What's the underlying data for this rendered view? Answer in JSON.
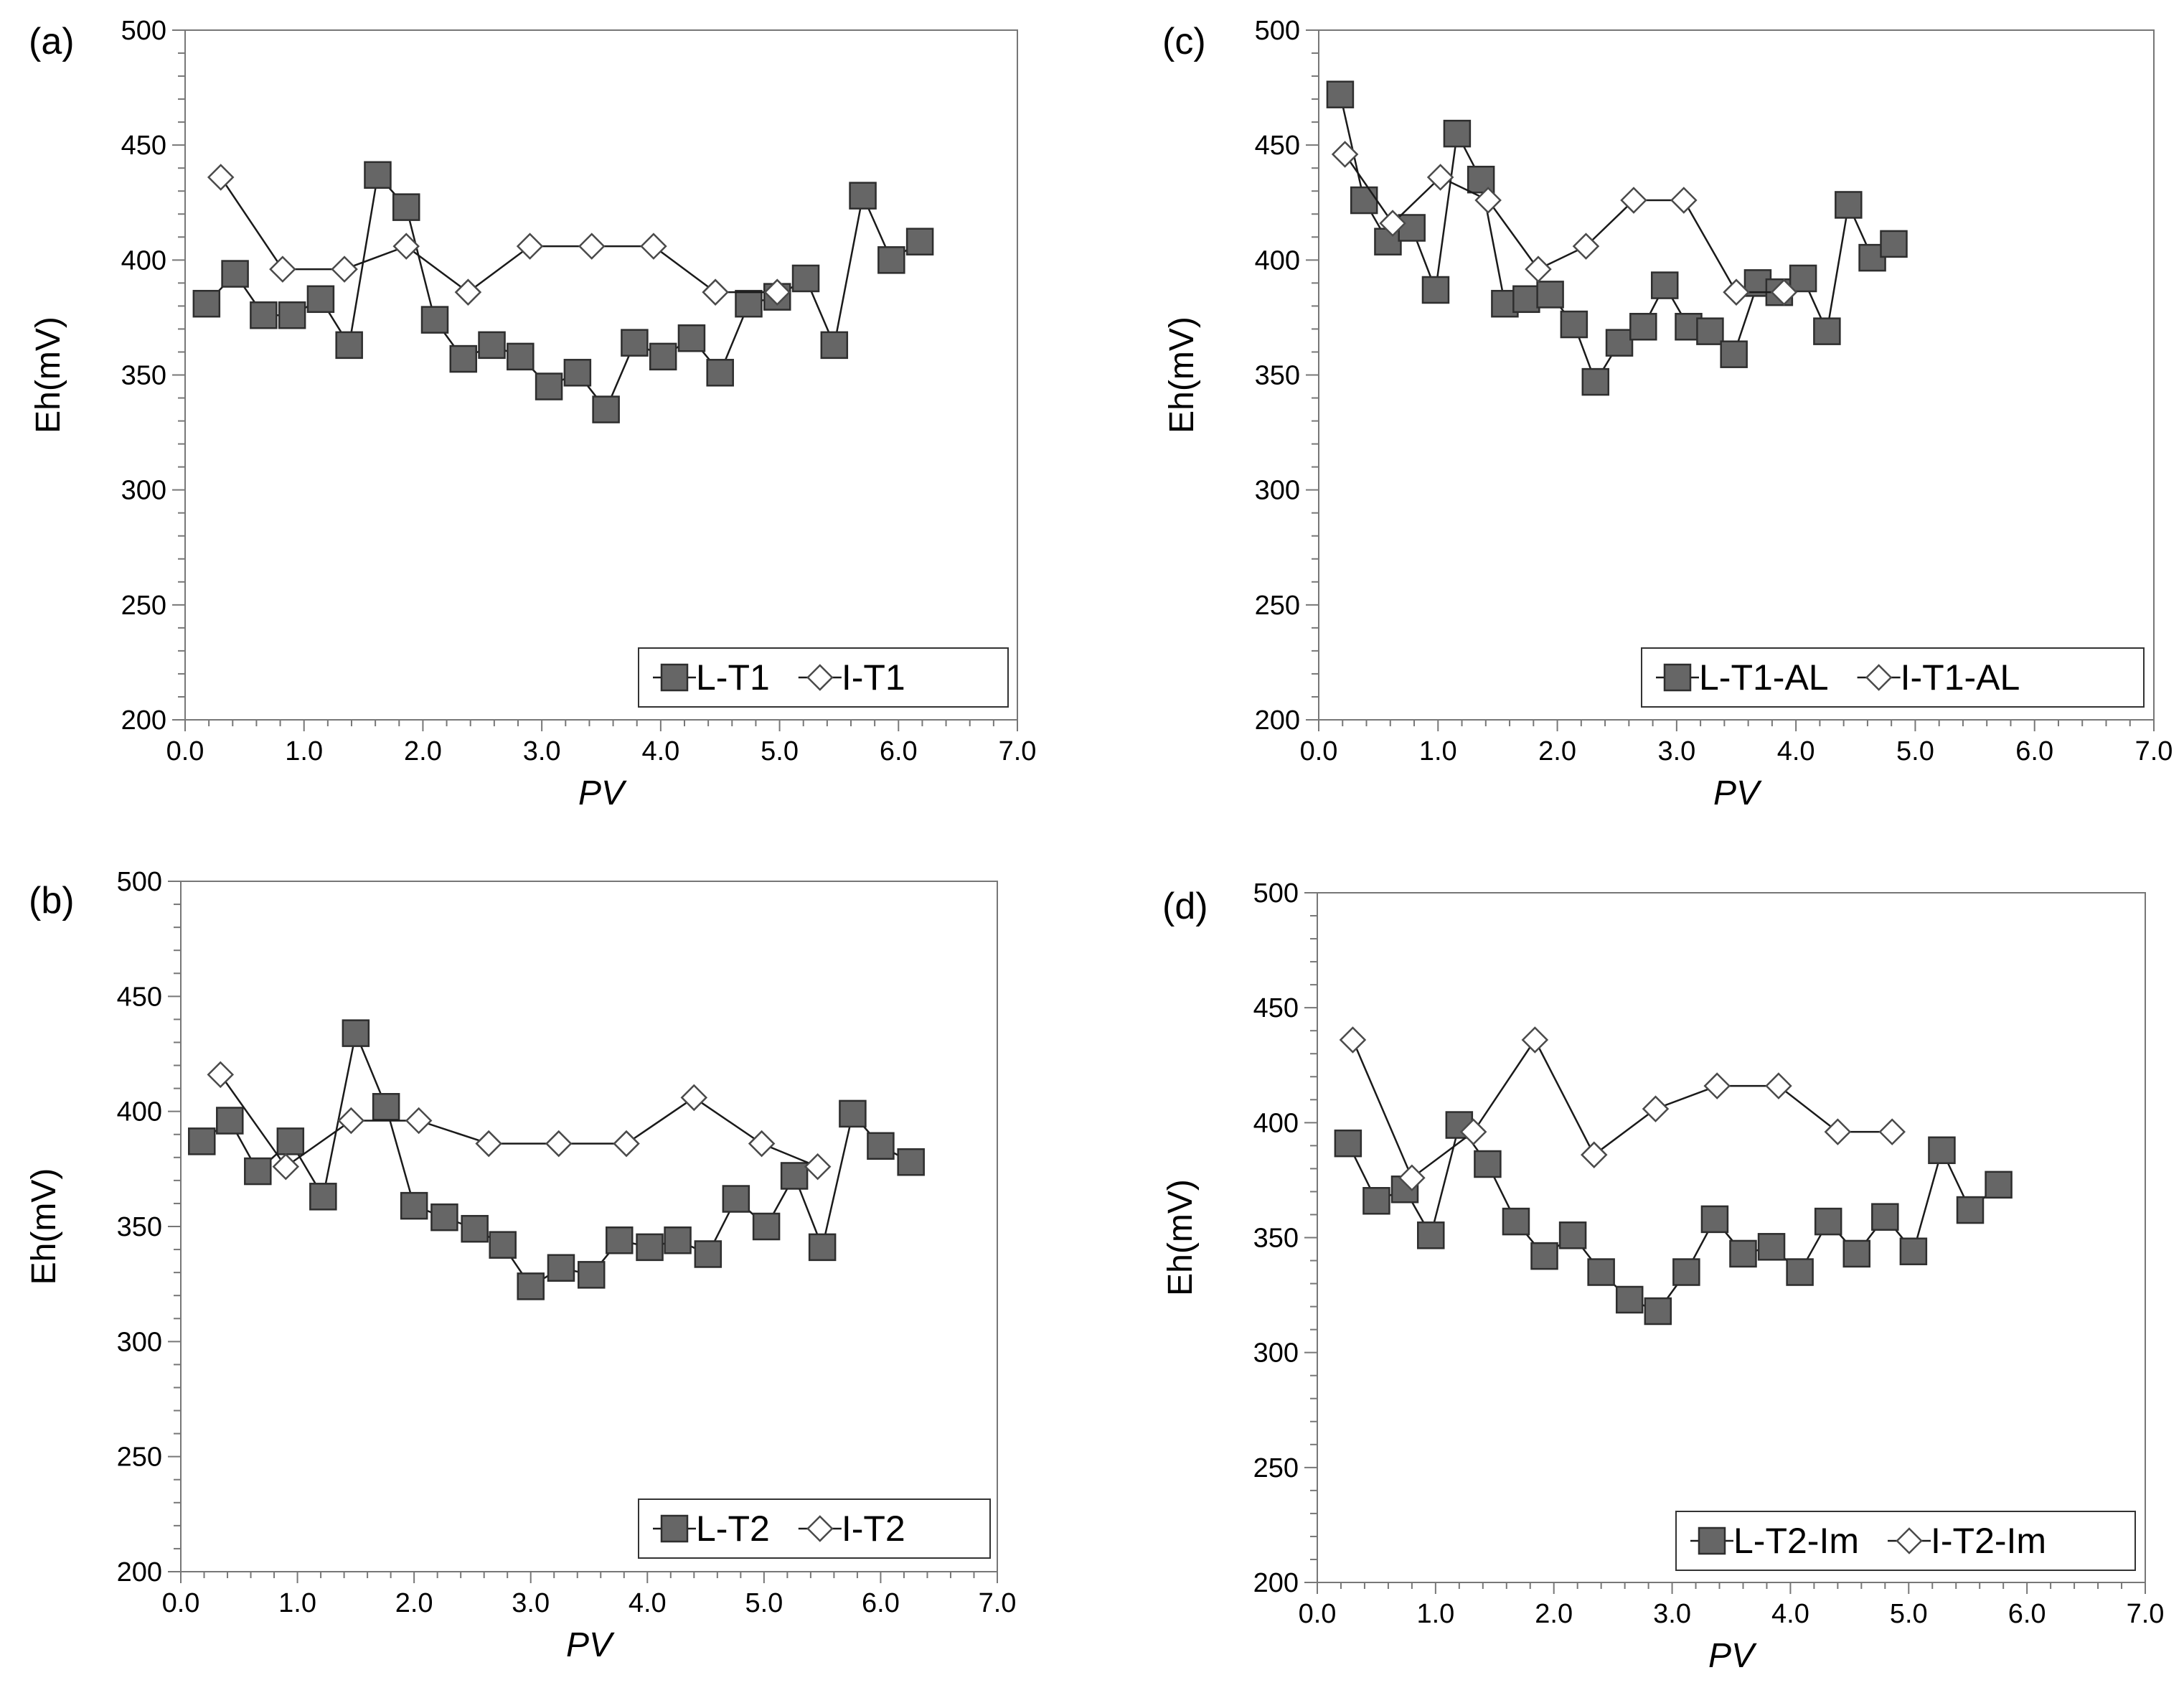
{
  "chart_data": [
    {
      "type": "line",
      "panel_label": "(a)",
      "xlabel": "PV",
      "ylabel": "Eh(mV)",
      "xlim": [
        0,
        7
      ],
      "ylim": [
        200,
        500
      ],
      "x_ticks": [
        "0.0",
        "1.0",
        "2.0",
        "3.0",
        "4.0",
        "5.0",
        "6.0",
        "7.0"
      ],
      "y_ticks": [
        "200",
        "250",
        "300",
        "350",
        "400",
        "450",
        "500"
      ],
      "legend_position": "bottom-right",
      "series": [
        {
          "name": "L-T1",
          "marker": "square",
          "color": "#666666",
          "x": [
            0.18,
            0.42,
            0.66,
            0.9,
            1.14,
            1.38,
            1.62,
            1.86,
            2.1,
            2.34,
            2.58,
            2.82,
            3.06,
            3.3,
            3.54,
            3.78,
            4.02,
            4.26,
            4.5,
            4.74,
            4.98,
            5.22,
            5.46,
            5.7,
            5.94,
            6.18
          ],
          "y": [
            381,
            394,
            376,
            376,
            383,
            363,
            437,
            423,
            374,
            357,
            363,
            358,
            345,
            351,
            335,
            364,
            358,
            366,
            351,
            381,
            384,
            392,
            363,
            428,
            400,
            408
          ]
        },
        {
          "name": "I-T1",
          "marker": "diamond",
          "color": "#ffffff",
          "x": [
            0.3,
            0.82,
            1.34,
            1.86,
            2.38,
            2.9,
            3.42,
            3.94,
            4.46,
            4.98
          ],
          "y": [
            436,
            396,
            396,
            406,
            386,
            406,
            406,
            406,
            386,
            386
          ]
        }
      ]
    },
    {
      "type": "line",
      "panel_label": "(b)",
      "xlabel": "PV",
      "ylabel": "Eh(mV)",
      "xlim": [
        0,
        7
      ],
      "ylim": [
        200,
        500
      ],
      "x_ticks": [
        "0.0",
        "1.0",
        "2.0",
        "3.0",
        "4.0",
        "5.0",
        "6.0",
        "7.0"
      ],
      "y_ticks": [
        "200",
        "250",
        "300",
        "350",
        "400",
        "450",
        "500"
      ],
      "legend_position": "bottom-right",
      "series": [
        {
          "name": "L-T2",
          "marker": "square",
          "color": "#666666",
          "x": [
            0.18,
            0.42,
            0.66,
            0.94,
            1.22,
            1.5,
            1.76,
            2.0,
            2.26,
            2.52,
            2.76,
            3.0,
            3.26,
            3.52,
            3.76,
            4.02,
            4.26,
            4.52,
            4.76,
            5.02,
            5.26,
            5.5,
            5.76,
            6.0,
            6.26
          ],
          "y": [
            387,
            396,
            374,
            387,
            363,
            434,
            402,
            359,
            354,
            349,
            342,
            324,
            332,
            329,
            344,
            341,
            344,
            338,
            362,
            350,
            372,
            341,
            399,
            385,
            378
          ]
        },
        {
          "name": "I-T2",
          "marker": "diamond",
          "color": "#ffffff",
          "x": [
            0.34,
            0.9,
            1.46,
            2.04,
            2.64,
            3.24,
            3.82,
            4.4,
            4.98,
            5.46
          ],
          "y": [
            416,
            376,
            396,
            396,
            386,
            386,
            386,
            406,
            386,
            376
          ]
        }
      ]
    },
    {
      "type": "line",
      "panel_label": "(c)",
      "xlabel": "PV",
      "ylabel": "Eh(mV)",
      "xlim": [
        0,
        7
      ],
      "ylim": [
        200,
        500
      ],
      "x_ticks": [
        "0.0",
        "1.0",
        "2.0",
        "3.0",
        "4.0",
        "5.0",
        "6.0",
        "7.0"
      ],
      "y_ticks": [
        "200",
        "250",
        "300",
        "350",
        "400",
        "450",
        "500"
      ],
      "legend_position": "bottom-right",
      "series": [
        {
          "name": "L-T1-AL",
          "marker": "square",
          "color": "#666666",
          "x": [
            0.18,
            0.38,
            0.58,
            0.78,
            0.98,
            1.16,
            1.36,
            1.56,
            1.74,
            1.94,
            2.14,
            2.32,
            2.52,
            2.72,
            2.9,
            3.1,
            3.28,
            3.48,
            3.68,
            3.86,
            4.06,
            4.26,
            4.44,
            4.64,
            4.82
          ],
          "y": [
            472,
            426,
            408,
            414,
            387,
            455,
            435,
            381,
            383,
            385,
            372,
            347,
            364,
            371,
            389,
            371,
            369,
            359,
            390,
            386,
            392,
            369,
            424,
            401,
            407
          ]
        },
        {
          "name": "I-T1-AL",
          "marker": "diamond",
          "color": "#ffffff",
          "x": [
            0.22,
            0.62,
            1.02,
            1.42,
            1.84,
            2.24,
            2.64,
            3.06,
            3.5,
            3.9
          ],
          "y": [
            446,
            416,
            436,
            426,
            396,
            406,
            426,
            426,
            386,
            386
          ]
        }
      ]
    },
    {
      "type": "line",
      "panel_label": "(d)",
      "xlabel": "PV",
      "ylabel": "Eh(mV)",
      "xlim": [
        0,
        7
      ],
      "ylim": [
        200,
        500
      ],
      "x_ticks": [
        "0.0",
        "1.0",
        "2.0",
        "3.0",
        "4.0",
        "5.0",
        "6.0",
        "7.0"
      ],
      "y_ticks": [
        "200",
        "250",
        "300",
        "350",
        "400",
        "450",
        "500"
      ],
      "legend_position": "bottom-right",
      "series": [
        {
          "name": "L-T2-Im",
          "marker": "square",
          "color": "#666666",
          "x": [
            0.26,
            0.5,
            0.74,
            0.96,
            1.2,
            1.44,
            1.68,
            1.92,
            2.16,
            2.4,
            2.64,
            2.88,
            3.12,
            3.36,
            3.6,
            3.84,
            4.08,
            4.32,
            4.56,
            4.8,
            5.04,
            5.28,
            5.52,
            5.76
          ],
          "y": [
            391,
            366,
            371,
            351,
            399,
            382,
            357,
            342,
            351,
            335,
            323,
            318,
            335,
            358,
            343,
            346,
            335,
            357,
            343,
            359,
            344,
            388,
            362,
            373
          ]
        },
        {
          "name": "I-T2-Im",
          "marker": "diamond",
          "color": "#ffffff",
          "x": [
            0.3,
            0.8,
            1.32,
            1.84,
            2.34,
            2.86,
            3.38,
            3.9,
            4.4,
            4.86
          ],
          "y": [
            436,
            376,
            396,
            436,
            386,
            406,
            416,
            416,
            396,
            396
          ]
        }
      ]
    }
  ]
}
